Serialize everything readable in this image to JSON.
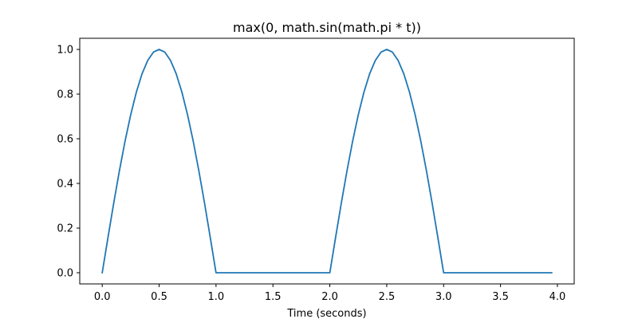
{
  "chart_data": {
    "type": "line",
    "title": "max(0, math.sin(math.pi * t))",
    "xlabel": "Time (seconds)",
    "ylabel": "",
    "xlim": [
      -0.1975,
      4.1475
    ],
    "ylim": [
      -0.05,
      1.05
    ],
    "x_ticks": [
      0.0,
      0.5,
      1.0,
      1.5,
      2.0,
      2.5,
      3.0,
      3.5,
      4.0
    ],
    "x_tick_labels": [
      "0.0",
      "0.5",
      "1.0",
      "1.5",
      "2.0",
      "2.5",
      "3.0",
      "3.5",
      "4.0"
    ],
    "y_ticks": [
      0.0,
      0.2,
      0.4,
      0.6,
      0.8,
      1.0
    ],
    "y_tick_labels": [
      "0.0",
      "0.2",
      "0.4",
      "0.6",
      "0.8",
      "1.0"
    ],
    "grid": false,
    "legend": "none",
    "series": [
      {
        "color": "#1f77b4",
        "x": [
          0.0,
          0.05,
          0.1,
          0.15,
          0.2,
          0.25,
          0.3,
          0.35,
          0.4,
          0.45,
          0.5,
          0.55,
          0.6,
          0.65,
          0.7,
          0.75,
          0.8,
          0.85,
          0.9,
          0.95,
          1.0,
          1.05,
          1.1,
          1.15,
          1.2,
          1.25,
          1.3,
          1.35,
          1.4,
          1.45,
          1.5,
          1.55,
          1.6,
          1.65,
          1.7,
          1.75,
          1.8,
          1.85,
          1.9,
          1.95,
          2.0,
          2.05,
          2.1,
          2.15,
          2.2,
          2.25,
          2.3,
          2.35,
          2.4,
          2.45,
          2.5,
          2.55,
          2.6,
          2.65,
          2.7,
          2.75,
          2.8,
          2.85,
          2.9,
          2.95,
          3.0,
          3.05,
          3.1,
          3.15,
          3.2,
          3.25,
          3.3,
          3.35,
          3.4,
          3.45,
          3.5,
          3.55,
          3.6,
          3.65,
          3.7,
          3.75,
          3.8,
          3.85,
          3.9,
          3.95
        ],
        "y": [
          0.0,
          0.156,
          0.309,
          0.454,
          0.588,
          0.707,
          0.809,
          0.891,
          0.951,
          0.988,
          1.0,
          0.988,
          0.951,
          0.891,
          0.809,
          0.707,
          0.588,
          0.454,
          0.309,
          0.156,
          0.0,
          0.0,
          0.0,
          0.0,
          0.0,
          0.0,
          0.0,
          0.0,
          0.0,
          0.0,
          0.0,
          0.0,
          0.0,
          0.0,
          0.0,
          0.0,
          0.0,
          0.0,
          0.0,
          0.0,
          0.0,
          0.156,
          0.309,
          0.454,
          0.588,
          0.707,
          0.809,
          0.891,
          0.951,
          0.988,
          1.0,
          0.988,
          0.951,
          0.891,
          0.809,
          0.707,
          0.588,
          0.454,
          0.309,
          0.156,
          0.0,
          0.0,
          0.0,
          0.0,
          0.0,
          0.0,
          0.0,
          0.0,
          0.0,
          0.0,
          0.0,
          0.0,
          0.0,
          0.0,
          0.0,
          0.0,
          0.0,
          0.0,
          0.0,
          0.0
        ]
      }
    ]
  }
}
